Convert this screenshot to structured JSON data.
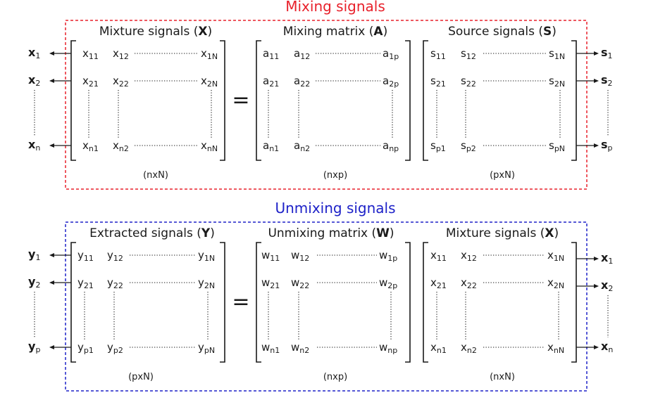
{
  "colors": {
    "mixing": "#e8212b",
    "unmixing": "#1e22c8",
    "ink": "#1a1a1a"
  },
  "equals_symbol": "=",
  "sections": [
    {
      "title": "Mixing signals",
      "matrices": [
        {
          "title": "Mixture signals (",
          "symbol": "X",
          "dim": "(nxN)",
          "cells": [
            [
              "x",
              "11"
            ],
            [
              "x",
              "12"
            ],
            [
              "x",
              "1N"
            ],
            [
              "x",
              "21"
            ],
            [
              "x",
              "22"
            ],
            [
              "x",
              "2N"
            ],
            [
              "x",
              "n1"
            ],
            [
              "x",
              "n2"
            ],
            [
              "x",
              "nN"
            ]
          ]
        },
        {
          "title": "Mixing matrix (",
          "symbol": "A",
          "dim": "(nxp)",
          "cells": [
            [
              "a",
              "11"
            ],
            [
              "a",
              "12"
            ],
            [
              "a",
              "1p"
            ],
            [
              "a",
              "21"
            ],
            [
              "a",
              "22"
            ],
            [
              "a",
              "2p"
            ],
            [
              "a",
              "n1"
            ],
            [
              "a",
              "n2"
            ],
            [
              "a",
              "np"
            ]
          ]
        },
        {
          "title": "Source signals (",
          "symbol": "S",
          "dim": "(pxN)",
          "cells": [
            [
              "s",
              "11"
            ],
            [
              "s",
              "12"
            ],
            [
              "s",
              "1N"
            ],
            [
              "s",
              "21"
            ],
            [
              "s",
              "22"
            ],
            [
              "s",
              "2N"
            ],
            [
              "s",
              "p1"
            ],
            [
              "s",
              "p2"
            ],
            [
              "s",
              "pN"
            ]
          ]
        }
      ],
      "left_labels": [
        [
          "x",
          "1"
        ],
        [
          "x",
          "2"
        ],
        [
          "x",
          "n"
        ]
      ],
      "right_labels": [
        [
          "s",
          "1"
        ],
        [
          "s",
          "2"
        ],
        [
          "s",
          "p"
        ]
      ]
    },
    {
      "title": "Unmixing signals",
      "matrices": [
        {
          "title": "Extracted signals (",
          "symbol": "Y",
          "dim": "(pxN)",
          "cells": [
            [
              "y",
              "11"
            ],
            [
              "y",
              "12"
            ],
            [
              "y",
              "1N"
            ],
            [
              "y",
              "21"
            ],
            [
              "y",
              "22"
            ],
            [
              "y",
              "2N"
            ],
            [
              "y",
              "p1"
            ],
            [
              "y",
              "p2"
            ],
            [
              "y",
              "pN"
            ]
          ]
        },
        {
          "title": "Unmixing matrix (",
          "symbol": "W",
          "dim": "(nxp)",
          "cells": [
            [
              "w",
              "11"
            ],
            [
              "w",
              "12"
            ],
            [
              "w",
              "1p"
            ],
            [
              "w",
              "21"
            ],
            [
              "w",
              "22"
            ],
            [
              "w",
              "2p"
            ],
            [
              "w",
              "n1"
            ],
            [
              "w",
              "n2"
            ],
            [
              "w",
              "np"
            ]
          ]
        },
        {
          "title": "Mixture signals (",
          "symbol": "X",
          "dim": "(nxN)",
          "cells": [
            [
              "x",
              "11"
            ],
            [
              "x",
              "12"
            ],
            [
              "x",
              "1N"
            ],
            [
              "x",
              "21"
            ],
            [
              "x",
              "22"
            ],
            [
              "x",
              "2N"
            ],
            [
              "x",
              "n1"
            ],
            [
              "x",
              "n2"
            ],
            [
              "x",
              "nN"
            ]
          ]
        }
      ],
      "left_labels": [
        [
          "y",
          "1"
        ],
        [
          "y",
          "2"
        ],
        [
          "y",
          "p"
        ]
      ],
      "right_labels": [
        [
          "x",
          "1"
        ],
        [
          "x",
          "2"
        ],
        [
          "x",
          "n"
        ]
      ]
    }
  ]
}
